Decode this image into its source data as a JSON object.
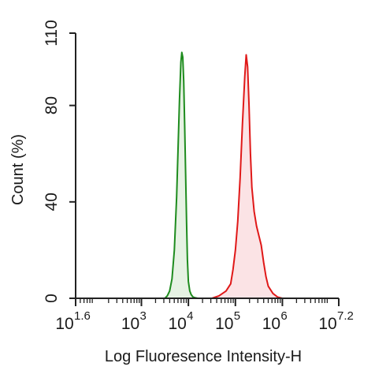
{
  "chart_data": {
    "type": "area",
    "title": "",
    "xlabel": "Log Fluoresence Intensity-H",
    "ylabel": "Count  (%)",
    "xscale": "log",
    "xlim_log10": [
      1.6,
      7.2
    ],
    "ylim": [
      0,
      110
    ],
    "grid": false,
    "legend": "none",
    "x_ticks": [
      {
        "base": "10",
        "exp": "1.6"
      },
      {
        "base": "10",
        "exp": "3"
      },
      {
        "base": "10",
        "exp": "4"
      },
      {
        "base": "10",
        "exp": "5"
      },
      {
        "base": "10",
        "exp": "6"
      },
      {
        "base": "10",
        "exp": "7.2"
      }
    ],
    "y_ticks": [
      "0",
      "40",
      "80",
      "110"
    ],
    "y_tick_values": [
      0,
      40,
      80,
      110
    ],
    "series": [
      {
        "color": "#1e8c1e",
        "fill": "#e6f2e3",
        "log10_x": [
          3.5,
          3.55,
          3.6,
          3.65,
          3.7,
          3.75,
          3.78,
          3.81,
          3.84,
          3.86,
          3.88,
          3.9,
          3.92,
          3.94,
          3.96,
          3.98,
          4.0,
          4.03,
          4.06,
          4.1,
          4.15,
          4.2
        ],
        "y": [
          0,
          1,
          3,
          8,
          20,
          42,
          62,
          82,
          98,
          102,
          100,
          90,
          72,
          52,
          32,
          16,
          7,
          3,
          1.5,
          0.5,
          0.2,
          0
        ]
      },
      {
        "color": "#e01818",
        "fill": "#fbe3e5",
        "log10_x": [
          4.5,
          4.65,
          4.8,
          4.9,
          4.95,
          5.0,
          5.05,
          5.1,
          5.15,
          5.2,
          5.23,
          5.26,
          5.29,
          5.32,
          5.35,
          5.4,
          5.45,
          5.5,
          5.55,
          5.6,
          5.65,
          5.7,
          5.8,
          5.9,
          6.0
        ],
        "y": [
          0,
          1,
          3,
          6,
          12,
          20,
          32,
          50,
          72,
          92,
          101,
          96,
          80,
          60,
          46,
          36,
          30,
          26,
          22,
          15,
          9,
          5,
          2,
          0.5,
          0
        ]
      }
    ]
  }
}
